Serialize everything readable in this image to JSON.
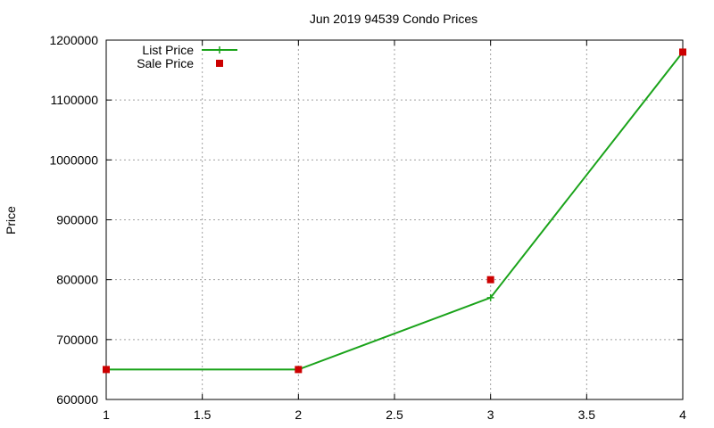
{
  "chart_data": {
    "type": "line",
    "title": "Jun 2019 94539 Condo Prices",
    "xlabel": "",
    "ylabel": "Price",
    "xlim": [
      1,
      4
    ],
    "ylim": [
      600000,
      1200000
    ],
    "x_ticks": [
      "1",
      "1.5",
      "2",
      "2.5",
      "3",
      "3.5",
      "4"
    ],
    "y_ticks": [
      "600000",
      "700000",
      "800000",
      "900000",
      "1000000",
      "1100000",
      "1200000"
    ],
    "grid": true,
    "legend_position": "top-left",
    "series": [
      {
        "name": "List Price",
        "style": "line-with-plus-markers",
        "color": "#1aa31a",
        "x": [
          1,
          2,
          3,
          4
        ],
        "y": [
          650000,
          650000,
          770000,
          1180000
        ]
      },
      {
        "name": "Sale Price",
        "style": "square-markers",
        "color": "#cc0000",
        "x": [
          1,
          2,
          3,
          4
        ],
        "y": [
          650000,
          650000,
          800000,
          1180000
        ]
      }
    ]
  }
}
